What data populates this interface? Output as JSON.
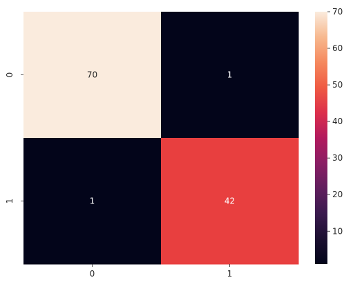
{
  "chart_data": {
    "type": "heatmap",
    "x_categories": [
      "0",
      "1"
    ],
    "y_categories": [
      "0",
      "1"
    ],
    "values": [
      [
        70,
        1
      ],
      [
        1,
        42
      ]
    ],
    "value_labels": [
      [
        "70",
        "1"
      ],
      [
        "1",
        "42"
      ]
    ],
    "title": "",
    "xlabel": "",
    "ylabel": "",
    "colorbar": {
      "range": [
        1,
        70
      ],
      "ticks": [
        10,
        20,
        30,
        40,
        50,
        60,
        70
      ],
      "tick_labels": [
        "10",
        "20",
        "30",
        "40",
        "50",
        "60",
        "70"
      ],
      "colormap": "rocket"
    },
    "colors": {
      "cell_0_0": "#FAEBDD",
      "cell_0_1": "#03051A",
      "cell_1_0": "#03051A",
      "cell_1_1": "#E83F3F",
      "text_light_bg": "#262626",
      "text_dark_bg": "#FFFFFF"
    }
  }
}
